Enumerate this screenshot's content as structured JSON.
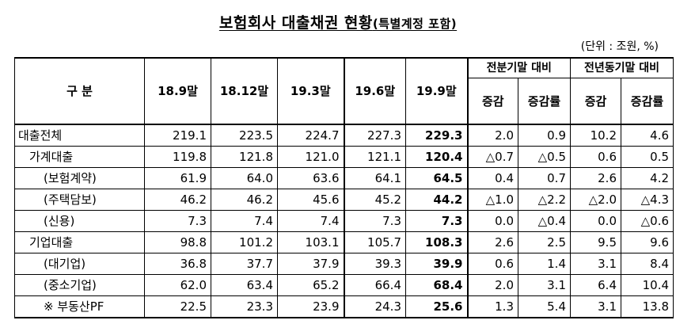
{
  "title": {
    "main": "보험회사 대출채권 현황",
    "sub": "(특별계정 포함)"
  },
  "unit": "(단위 : 조원, %)",
  "header": {
    "category": "구  분",
    "periods": [
      "18.9말",
      "18.12말",
      "19.3말",
      "19.6말",
      "19.9말"
    ],
    "group_prev_quarter": "전분기말 대비",
    "group_prev_year": "전년동기말 대비",
    "change": "증감",
    "change_rate": "증감률"
  },
  "rows": [
    {
      "label": "대출전체",
      "values": [
        "219.1",
        "223.5",
        "224.7",
        "227.3",
        "229.3"
      ],
      "qoq": [
        "2.0",
        "0.9"
      ],
      "yoy": [
        "10.2",
        "4.6"
      ]
    },
    {
      "label": "가계대출",
      "values": [
        "119.8",
        "121.8",
        "121.0",
        "121.1",
        "120.4"
      ],
      "qoq": [
        "△0.7",
        "△0.5"
      ],
      "yoy": [
        "0.6",
        "0.5"
      ]
    },
    {
      "label": "(보험계약)",
      "values": [
        "61.9",
        "64.0",
        "63.6",
        "64.1",
        "64.5"
      ],
      "qoq": [
        "0.4",
        "0.7"
      ],
      "yoy": [
        "2.6",
        "4.2"
      ]
    },
    {
      "label": "(주택담보)",
      "values": [
        "46.2",
        "46.2",
        "45.6",
        "45.2",
        "44.2"
      ],
      "qoq": [
        "△1.0",
        "△2.2"
      ],
      "yoy": [
        "△2.0",
        "△4.3"
      ]
    },
    {
      "label": "(신용)",
      "values": [
        "7.3",
        "7.4",
        "7.4",
        "7.3",
        "7.3"
      ],
      "qoq": [
        "0.0",
        "△0.4"
      ],
      "yoy": [
        "0.0",
        "△0.6"
      ]
    },
    {
      "label": "기업대출",
      "values": [
        "98.8",
        "101.2",
        "103.1",
        "105.7",
        "108.3"
      ],
      "qoq": [
        "2.6",
        "2.5"
      ],
      "yoy": [
        "9.5",
        "9.6"
      ]
    },
    {
      "label": "(대기업)",
      "values": [
        "36.8",
        "37.7",
        "37.9",
        "39.3",
        "39.9"
      ],
      "qoq": [
        "0.6",
        "1.4"
      ],
      "yoy": [
        "3.1",
        "8.4"
      ]
    },
    {
      "label": "(중소기업)",
      "values": [
        "62.0",
        "63.4",
        "65.2",
        "66.4",
        "68.4"
      ],
      "qoq": [
        "2.0",
        "3.1"
      ],
      "yoy": [
        "6.4",
        "10.4"
      ]
    },
    {
      "label": "※ 부동산PF",
      "values": [
        "22.5",
        "23.3",
        "23.9",
        "24.3",
        "25.6"
      ],
      "qoq": [
        "1.3",
        "5.4"
      ],
      "yoy": [
        "3.1",
        "13.8"
      ]
    }
  ]
}
